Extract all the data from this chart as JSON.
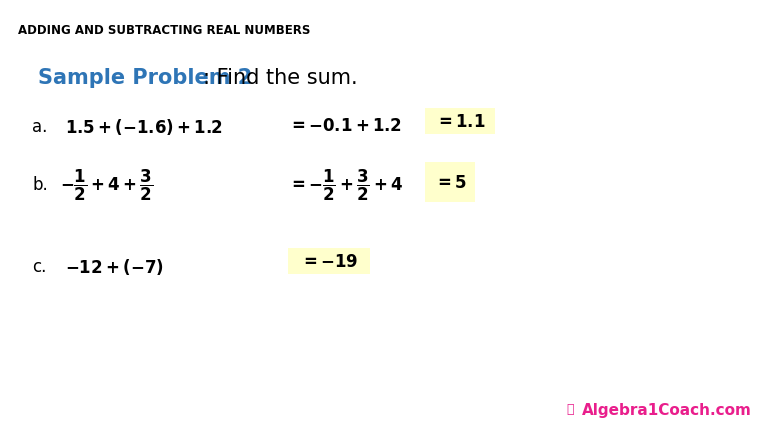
{
  "title": "ADDING AND SUBTRACTING REAL NUMBERS",
  "bg_color": "#ffffff",
  "title_color": "#000000",
  "header_bold_color": "#2E75B6",
  "header_normal_color": "#000000",
  "highlight_color": "#FFFFCC",
  "watermark_color": "#E91E8C",
  "label_a": "a.",
  "label_b": "b.",
  "label_c": "c.",
  "header_bold_text": "Sample Problem 2",
  "header_normal_text": ": Find the sum.",
  "row_a_expr": "$\\mathbf{1.5 + (-1.6) + 1.2}$",
  "row_a_step": "$\\mathbf{= -0.1 + 1.2}$",
  "row_a_ans": "$\\mathbf{= 1.1}$",
  "row_b_expr": "$\\mathbf{-\\dfrac{1}{2}+4+\\dfrac{3}{2}}$",
  "row_b_step": "$\\mathbf{=-\\dfrac{1}{2}+\\dfrac{3}{2}+4}$",
  "row_b_ans": "$\\mathbf{= 5}$",
  "row_c_expr": "$\\mathbf{-12 + (-7)}$",
  "row_c_ans": "$\\mathbf{= -19}$",
  "watermark_text": "Algebra1Coach.com"
}
